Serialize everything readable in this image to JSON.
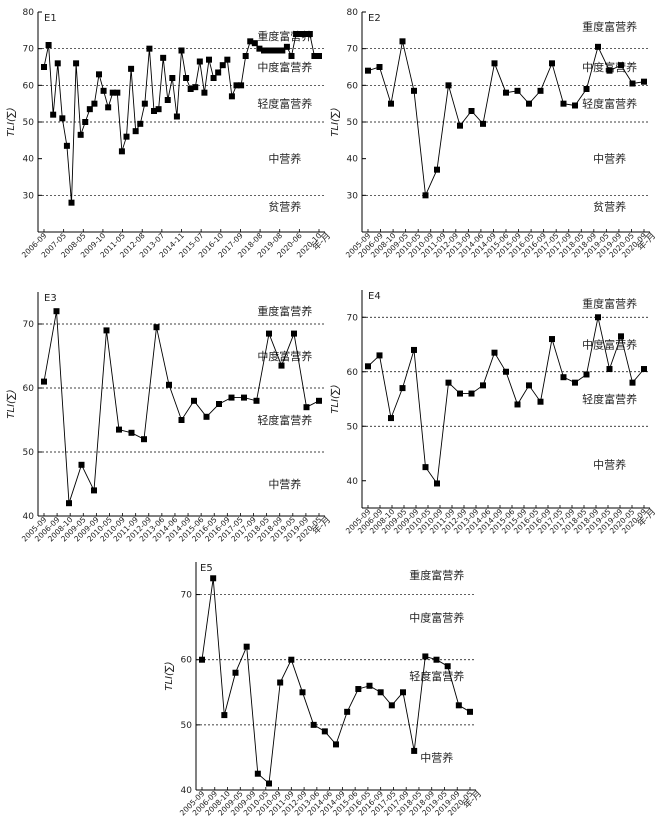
{
  "chart_data": [
    {
      "type": "line",
      "panel_label": "E1",
      "ylabel": "TLI(∑)",
      "ylim": [
        20,
        80
      ],
      "yticks": [
        30,
        40,
        50,
        60,
        70,
        80
      ],
      "thresholds": [
        30,
        50,
        60,
        70
      ],
      "zone_labels": [
        "重度富营养",
        "中度富营养",
        "轻度富营养",
        "中营养",
        "贫营养"
      ],
      "zone_values": [
        73.5,
        65,
        55,
        40,
        27
      ],
      "x_unit": "年-月",
      "x_labels": [
        "2006-09",
        "2007-05",
        "2008-05",
        "2009-10",
        "2011-05",
        "2012-08",
        "2013-07",
        "2014-11",
        "2015-07",
        "2016-10",
        "2017-09",
        "2018-08",
        "2019-08",
        "2020-06",
        "2020-10"
      ],
      "values": [
        65,
        71,
        52,
        66,
        51,
        43.5,
        28,
        66,
        46.5,
        50,
        53.5,
        55,
        63,
        58.5,
        54,
        58,
        58,
        42,
        46,
        64.5,
        47.5,
        49.5,
        55,
        70,
        53,
        53.5,
        67.5,
        56,
        62,
        51.5,
        69.5,
        62,
        59,
        59.5,
        66.5,
        58,
        67,
        62,
        63.5,
        65.5,
        67,
        57,
        60,
        60,
        68,
        72,
        71.5,
        70,
        69.5,
        69.5,
        69.5,
        69.5,
        69.5,
        70.5,
        68,
        74,
        74,
        74,
        74,
        68,
        68
      ]
    },
    {
      "type": "line",
      "panel_label": "E2",
      "ylabel": "TLI(∑)",
      "ylim": [
        20,
        80
      ],
      "yticks": [
        30,
        40,
        50,
        60,
        70,
        80
      ],
      "thresholds": [
        30,
        50,
        60,
        70
      ],
      "zone_labels": [
        "重度富营养",
        "中度富营养",
        "轻度富营养",
        "中营养",
        "贫营养"
      ],
      "zone_values": [
        76,
        65,
        55,
        40,
        27
      ],
      "x_unit": "年-月",
      "x_labels": [
        "2005-09",
        "2006-09",
        "2008-10",
        "2009-05",
        "2010-05",
        "2010-09",
        "2011-09",
        "2012-09",
        "2013-09",
        "2014-06",
        "2014-09",
        "2015-06",
        "2015-09",
        "2016-05",
        "2016-09",
        "2017-05",
        "2017-09",
        "2018-05",
        "2018-09",
        "2019-05",
        "2019-09",
        "2020-05",
        "2020-09"
      ],
      "values": [
        64,
        65,
        55,
        72,
        58.5,
        30,
        37,
        60,
        49,
        53,
        49.5,
        66,
        58,
        58.5,
        55,
        58.5,
        66,
        55,
        54.5,
        59,
        70.5,
        64,
        65.5,
        60.5,
        61
      ]
    },
    {
      "type": "line",
      "panel_label": "E3",
      "ylabel": "TLI(∑)",
      "ylim": [
        40,
        75
      ],
      "yticks": [
        40,
        50,
        60,
        70
      ],
      "thresholds": [
        50,
        60,
        70
      ],
      "zone_labels": [
        "重度富营养",
        "中度富营养",
        "轻度富营养",
        "中营养"
      ],
      "zone_values": [
        72,
        65,
        55,
        45
      ],
      "x_unit": "年-月",
      "x_labels": [
        "2005-09",
        "2006-09",
        "2008-10",
        "2009-05",
        "2009-09",
        "2010-05",
        "2010-09",
        "2011-09",
        "2012-09",
        "2013-06",
        "2014-06",
        "2014-09",
        "2015-06",
        "2016-05",
        "2016-09",
        "2017-05",
        "2017-09",
        "2018-05",
        "2018-09",
        "2019-05",
        "2019-09",
        "2020-05"
      ],
      "values": [
        61,
        72,
        42,
        48,
        44,
        69,
        53.5,
        53,
        52,
        69.5,
        60.5,
        55,
        58,
        55.5,
        57.5,
        58.5,
        58.5,
        58,
        68.5,
        63.5,
        68.5,
        57,
        58
      ]
    },
    {
      "type": "line",
      "panel_label": "E4",
      "ylabel": "TLI(∑)",
      "ylim": [
        35,
        75
      ],
      "yticks": [
        40,
        50,
        60,
        70
      ],
      "thresholds": [
        50,
        60,
        70
      ],
      "zone_labels": [
        "重度富营养",
        "中度富营养",
        "轻度富营养",
        "中营养"
      ],
      "zone_values": [
        72.5,
        65,
        55,
        43
      ],
      "x_unit": "年-月",
      "x_labels": [
        "2005-09",
        "2006-09",
        "2008-10",
        "2009-05",
        "2009-09",
        "2010-05",
        "2010-09",
        "2011-09",
        "2012-09",
        "2013-09",
        "2014-06",
        "2014-09",
        "2015-06",
        "2015-09",
        "2016-05",
        "2016-09",
        "2017-05",
        "2017-09",
        "2018-05",
        "2018-09",
        "2019-05",
        "2019-09",
        "2020-05",
        "2020-09"
      ],
      "values": [
        61,
        63,
        51.5,
        57,
        64,
        42.5,
        39.5,
        58,
        56,
        56,
        57.5,
        63.5,
        60,
        54,
        57.5,
        54.5,
        66,
        59,
        58,
        59.5,
        70,
        60.5,
        66.5,
        58,
        60.5
      ]
    },
    {
      "type": "line",
      "panel_label": "E5",
      "ylabel": "TLI(∑)",
      "ylim": [
        40,
        75
      ],
      "yticks": [
        40,
        50,
        60,
        70
      ],
      "thresholds": [
        50,
        60,
        70
      ],
      "zone_labels": [
        "重度富营养",
        "中度富营养",
        "轻度富营养",
        "中营养"
      ],
      "zone_values": [
        73,
        66.5,
        57.5,
        45
      ],
      "x_unit": "年-月",
      "x_labels": [
        "2005-09",
        "2006-09",
        "2008-10",
        "2009-05",
        "2009-09",
        "2010-05",
        "2010-09",
        "2011-09",
        "2012-09",
        "2013-06",
        "2014-06",
        "2014-09",
        "2015-06",
        "2016-05",
        "2016-09",
        "2017-05",
        "2017-09",
        "2018-05",
        "2018-09",
        "2019-05",
        "2019-09",
        "2020-05"
      ],
      "values": [
        60,
        72.5,
        51.5,
        58,
        62,
        42.5,
        41,
        56.5,
        60,
        55,
        50,
        49,
        47,
        52,
        55.5,
        56,
        55,
        53,
        55,
        46,
        60.5,
        60,
        59,
        53,
        52
      ]
    }
  ]
}
